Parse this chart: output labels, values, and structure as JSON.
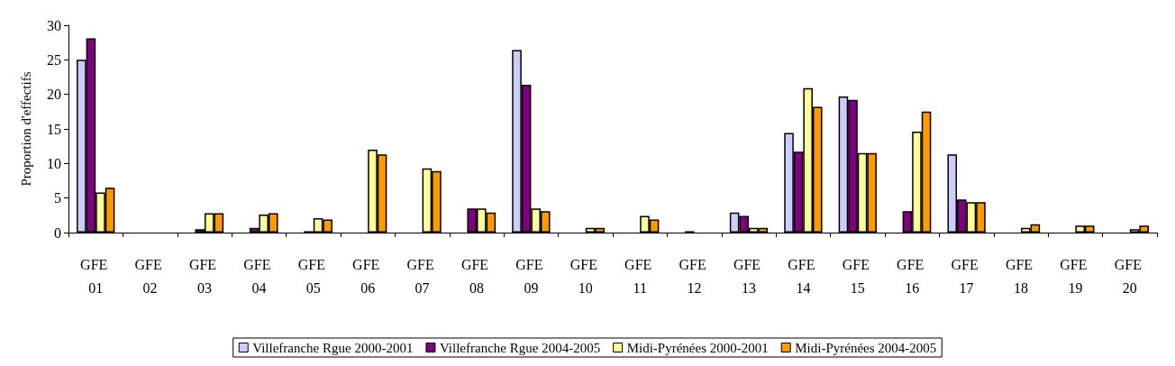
{
  "chart_data": {
    "type": "bar",
    "ylabel": "Proportion d'effectifs",
    "categories": [
      "GFE 01",
      "GFE 02",
      "GFE 03",
      "GFE 04",
      "GFE 05",
      "GFE 06",
      "GFE 07",
      "GFE 08",
      "GFE 09",
      "GFE 10",
      "GFE 11",
      "GFE 12",
      "GFE 13",
      "GFE 14",
      "GFE 15",
      "GFE 16",
      "GFE 17",
      "GFE 18",
      "GFE 19",
      "GFE 20"
    ],
    "series": [
      {
        "name": "Villefranche Rgue 2000-2001",
        "color": "#ccccff",
        "values": [
          25.0,
          null,
          null,
          null,
          null,
          null,
          null,
          null,
          26.4,
          null,
          null,
          null,
          2.9,
          14.4,
          19.7,
          null,
          11.3,
          null,
          null,
          null
        ]
      },
      {
        "name": "Villefranche Rgue 2004-2005",
        "color": "#800080",
        "values": [
          28.1,
          null,
          0.5,
          0.7,
          0.2,
          null,
          null,
          3.5,
          21.4,
          null,
          null,
          0.2,
          2.4,
          11.7,
          19.2,
          3.1,
          4.8,
          null,
          null,
          null
        ]
      },
      {
        "name": "Midi-Pyrénées 2000-2001",
        "color": "#ffff99",
        "values": [
          5.8,
          null,
          2.8,
          2.6,
          2.1,
          12.0,
          9.3,
          3.5,
          3.5,
          0.7,
          2.4,
          null,
          0.7,
          20.9,
          11.5,
          14.6,
          4.4,
          0.7,
          1.0,
          0.5
        ]
      },
      {
        "name": "Midi-Pyrénées 2004-2005",
        "color": "#ff9900",
        "values": [
          6.5,
          null,
          2.8,
          2.8,
          1.9,
          11.3,
          8.9,
          2.9,
          3.1,
          0.7,
          1.9,
          null,
          0.7,
          18.2,
          11.5,
          17.5,
          4.4,
          1.2,
          1.0,
          1.0
        ]
      }
    ],
    "ylim": [
      0,
      30
    ],
    "yticks": [
      0,
      5,
      10,
      15,
      20,
      25,
      30
    ],
    "grid": false,
    "legend": "bottom"
  }
}
